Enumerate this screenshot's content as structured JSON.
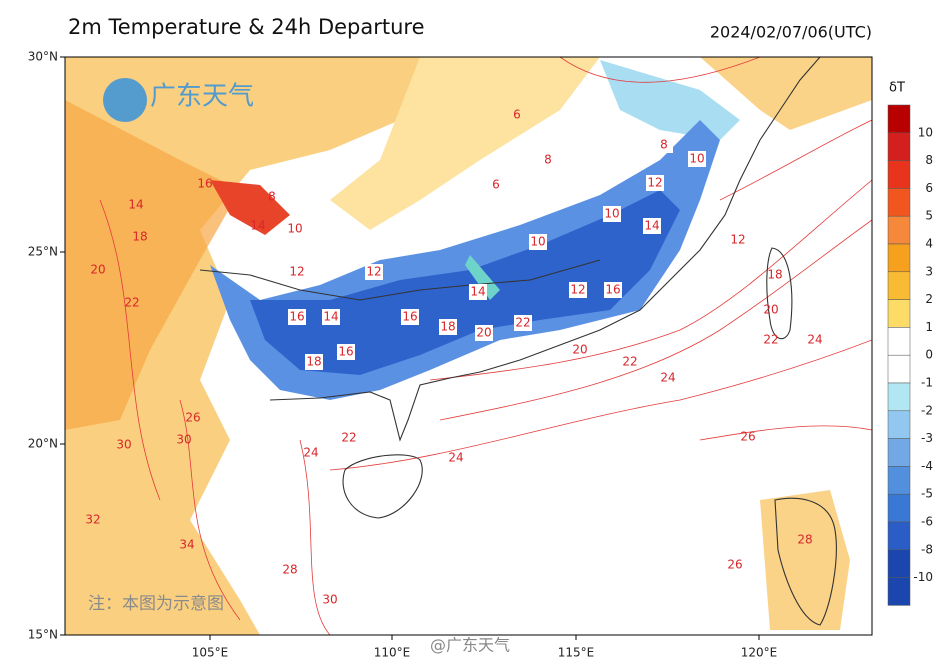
{
  "header": {
    "title": "2m Temperature & 24h Departure",
    "timestamp": "2024/02/07/06(UTC)"
  },
  "lat_ticks": [
    "30°N",
    "25°N",
    "20°N",
    "15°N"
  ],
  "lon_ticks": [
    "105°E",
    "110°E",
    "115°E",
    "120°E"
  ],
  "colorbar": {
    "title": "δT",
    "labels": [
      "10",
      "8",
      "6",
      "5",
      "4",
      "3",
      "2",
      "1",
      "0",
      "-1",
      "-2",
      "-3",
      "-4",
      "-5",
      "-6",
      "-8",
      "-10"
    ]
  },
  "contour_labels": [
    "8",
    "10",
    "14",
    "16",
    "12",
    "16",
    "14",
    "18",
    "16",
    "16",
    "18",
    "20",
    "22",
    "14",
    "12",
    "16",
    "14",
    "10",
    "12",
    "8",
    "10",
    "12",
    "18",
    "20",
    "22",
    "24",
    "22",
    "24",
    "26",
    "24",
    "22",
    "24",
    "20",
    "6",
    "6",
    "8",
    "10",
    "12",
    "22",
    "20",
    "18",
    "14",
    "26",
    "30",
    "30",
    "32",
    "34",
    "28",
    "28",
    "26",
    "30"
  ],
  "watermarks": {
    "logo": "广东天气",
    "note": "注：本图为示意图",
    "weibo": "@广东天气"
  }
}
